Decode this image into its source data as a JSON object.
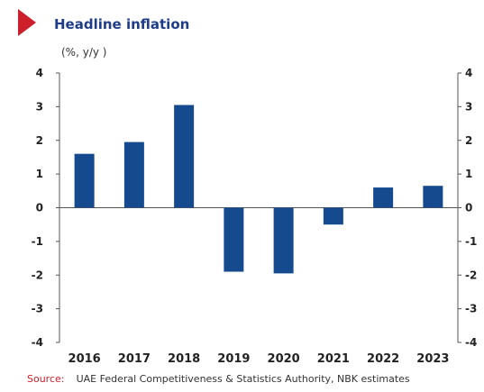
{
  "colors": {
    "accent": "#cc1f2b",
    "title": "#1f3c88",
    "bar": "#154a8e",
    "source_label": "#cc1f2b",
    "axis": "#555555"
  },
  "chart_data": {
    "type": "bar",
    "title": "Headline inflation",
    "unit": "(%, y/y )",
    "categories": [
      "2016",
      "2017",
      "2018",
      "2019",
      "2020",
      "2021",
      "2022",
      "2023"
    ],
    "values": [
      1.6,
      1.95,
      3.05,
      -1.9,
      -1.95,
      -0.5,
      0.6,
      0.65
    ],
    "ylim": [
      -4,
      4
    ],
    "yticks": [
      "-4",
      "-3",
      "-2",
      "-1",
      "0",
      "1",
      "2",
      "3",
      "4"
    ],
    "grid": false,
    "source_label": "Source:",
    "source_text": "UAE Federal Competitiveness & Statistics Authority, NBK estimates"
  }
}
